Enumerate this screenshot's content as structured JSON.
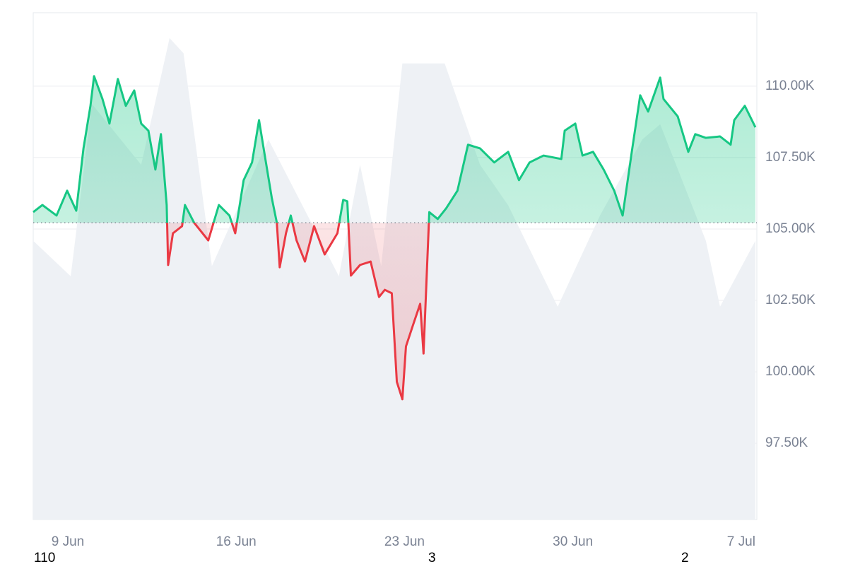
{
  "chart_data": {
    "type": "line",
    "x": [
      7.56,
      7.94,
      8.53,
      8.97,
      9.35,
      9.65,
      9.94,
      10.09,
      10.44,
      10.73,
      11.08,
      11.41,
      11.76,
      12.05,
      12.35,
      12.64,
      12.87,
      13.11,
      13.17,
      13.37,
      13.75,
      13.87,
      14.25,
      14.84,
      15.28,
      15.72,
      15.96,
      16.31,
      16.66,
      16.95,
      17.19,
      17.48,
      17.69,
      17.81,
      18.07,
      18.27,
      18.51,
      18.86,
      19.24,
      19.68,
      20.21,
      20.45,
      20.62,
      20.77,
      21.15,
      21.59,
      21.94,
      22.18,
      22.47,
      22.68,
      22.91,
      23.06,
      23.35,
      23.65,
      23.79,
      24.03,
      24.38,
      24.73,
      25.2,
      25.64,
      26.14,
      26.73,
      27.31,
      27.76,
      28.2,
      28.78,
      29.52,
      29.66,
      30.1,
      30.4,
      30.84,
      31.28,
      31.72,
      32.07,
      32.45,
      32.8,
      33.13,
      33.63,
      33.77,
      34.36,
      34.8,
      35.09,
      35.53,
      36.12,
      36.56,
      36.71,
      37.15,
      37.59
    ],
    "series": [
      {
        "color": "#16c784",
        "down_color": "#ea3943",
        "values": [
          105590,
          105840,
          105470,
          106340,
          105640,
          107820,
          109310,
          110350,
          109550,
          108690,
          110250,
          109310,
          109850,
          108690,
          108440,
          107080,
          108320,
          105840,
          103740,
          104850,
          105100,
          105840,
          105220,
          104600,
          105840,
          105470,
          104850,
          106710,
          107330,
          108810,
          107570,
          106090,
          105220,
          103660,
          104850,
          105470,
          104600,
          103860,
          105100,
          104110,
          104850,
          106020,
          105970,
          103370,
          103740,
          103860,
          102620,
          102870,
          102750,
          99650,
          99040,
          100890,
          101630,
          102380,
          100640,
          105590,
          105350,
          105720,
          106340,
          107950,
          107820,
          107330,
          107700,
          106710,
          107330,
          107570,
          107450,
          108440,
          108690,
          107570,
          107700,
          107080,
          106340,
          105470,
          107700,
          109680,
          109110,
          110300,
          109550,
          108940,
          107700,
          108320,
          108190,
          108240,
          107950,
          108810,
          109310,
          108560
        ]
      },
      {
        "axis": "y2",
        "color": "#eef1f5",
        "x": [
          7.56,
          9.12,
          10.0,
          12.05,
          13.23,
          13.81,
          14.99,
          17.34,
          20.27,
          21.15,
          22.03,
          22.91,
          24.67,
          26.14,
          27.31,
          29.37,
          31.13,
          32.89,
          33.63,
          35.53,
          36.12,
          37.59
        ],
        "values": [
          55,
          48,
          82,
          70,
          95,
          92,
          50,
          75,
          48,
          70,
          50,
          90,
          90,
          70,
          62,
          42,
          60,
          75,
          78,
          55,
          42,
          55
        ]
      }
    ],
    "baseline": 105220,
    "xlim": [
      7.56,
      37.65
    ],
    "xticks": [
      {
        "value": 9,
        "label": "9 Jun"
      },
      {
        "value": 16,
        "label": "16 Jun"
      },
      {
        "value": 23,
        "label": "23 Jun"
      },
      {
        "value": 30,
        "label": "30 Jun"
      },
      {
        "value": 37,
        "label": "7 Jul"
      }
    ],
    "ylim": [
      94830,
      112570
    ],
    "yticks": [
      {
        "value": 97500,
        "label": "97.50K"
      },
      {
        "value": 100000,
        "label": "100.00K"
      },
      {
        "value": 102500,
        "label": "102.50K"
      },
      {
        "value": 105000,
        "label": "105.00K"
      },
      {
        "value": 107500,
        "label": "107.50K"
      },
      {
        "value": 110000,
        "label": "110.00K"
      }
    ],
    "y2lim": [
      0,
      100
    ],
    "grid": true,
    "annotations": [
      "110",
      "3",
      "2"
    ]
  }
}
